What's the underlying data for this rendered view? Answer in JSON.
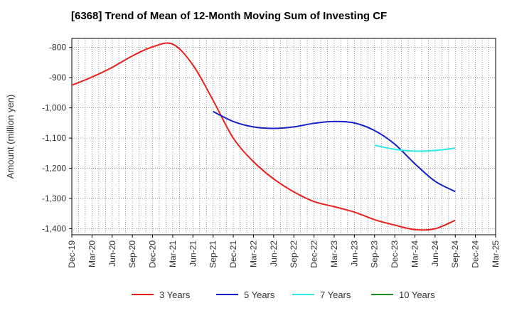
{
  "chart_data": {
    "type": "line",
    "title": "[6368]  Trend of Mean of 12-Month Moving Sum of Investing CF",
    "xlabel": "",
    "ylabel": "Amount (million yen)",
    "ylim": [
      -1420,
      -770
    ],
    "yticks": [
      -800,
      -900,
      -1000,
      -1100,
      -1200,
      -1300,
      -1400
    ],
    "ytick_labels": [
      "-800",
      "-900",
      "-1,000",
      "-1,100",
      "-1,200",
      "-1,300",
      "-1,400"
    ],
    "x_start": "Dec-19",
    "x_end": "Mar-25",
    "xtick_labels": [
      "Dec-19",
      "Mar-20",
      "Jun-20",
      "Sep-20",
      "Dec-20",
      "Mar-21",
      "Jun-21",
      "Sep-21",
      "Dec-21",
      "Mar-22",
      "Jun-22",
      "Sep-22",
      "Dec-22",
      "Mar-23",
      "Jun-23",
      "Sep-23",
      "Dec-23",
      "Mar-24",
      "Jun-24",
      "Sep-24",
      "Dec-24",
      "Mar-25"
    ],
    "grid": true,
    "legend_position": "bottom",
    "series": [
      {
        "name": "3 Years",
        "color": "#e8201c",
        "x": [
          0,
          3,
          6,
          9,
          12,
          15,
          18,
          21,
          24,
          27,
          30,
          33,
          36,
          39,
          42,
          45,
          48,
          51,
          54,
          57
        ],
        "values": [
          -925,
          -898,
          -866,
          -828,
          -798,
          -789,
          -858,
          -975,
          -1100,
          -1178,
          -1235,
          -1278,
          -1310,
          -1327,
          -1345,
          -1370,
          -1388,
          -1403,
          -1400,
          -1372
        ]
      },
      {
        "name": "5 Years",
        "color": "#1420c8",
        "x": [
          21,
          24,
          27,
          30,
          33,
          36,
          39,
          42,
          45,
          48,
          51,
          54,
          57
        ],
        "values": [
          -1012,
          -1045,
          -1063,
          -1068,
          -1063,
          -1051,
          -1045,
          -1050,
          -1075,
          -1120,
          -1185,
          -1243,
          -1277
        ]
      },
      {
        "name": "7 Years",
        "color": "#2de8e8",
        "x": [
          45,
          48,
          51,
          54,
          57
        ],
        "values": [
          -1124,
          -1137,
          -1143,
          -1141,
          -1133
        ]
      },
      {
        "name": "10 Years",
        "color": "#1e8c1e",
        "x": [],
        "values": []
      }
    ]
  }
}
